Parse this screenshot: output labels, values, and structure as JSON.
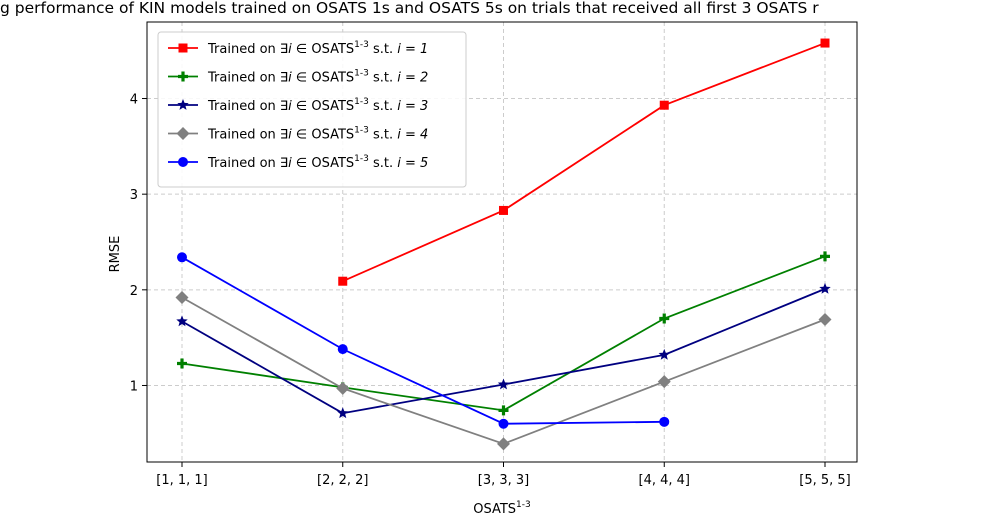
{
  "chart_data": {
    "type": "line",
    "title": "g performance of KIN models trained on OSATS 1s and OSATS 5s on trials that received all first 3 OSATS r",
    "xlabel": "OSATS",
    "xlabel_sup": "1-3",
    "ylabel": "RMSE",
    "categories": [
      "[1, 1, 1]",
      "[2, 2, 2]",
      "[3, 3, 3]",
      "[4, 4, 4]",
      "[5, 5, 5]"
    ],
    "ylim": [
      0.2,
      4.8
    ],
    "yticks": [
      1,
      2,
      3,
      4
    ],
    "grid": true,
    "legend_position": "top-left",
    "series": [
      {
        "name": "Trained on ∃i ∈ OSATS1-3 s.t. i = 1",
        "legend_prefix": "Trained on ∃",
        "legend_i": "i",
        "legend_mid": " ∈ OSATS",
        "legend_sup": "1-3",
        "legend_st": " s.t. ",
        "legend_val": "i = 1",
        "color": "#ff0000",
        "marker": "square",
        "values": [
          null,
          2.09,
          2.83,
          3.93,
          4.58
        ]
      },
      {
        "name": "Trained on ∃i ∈ OSATS1-3 s.t. i = 2",
        "legend_prefix": "Trained on ∃",
        "legend_i": "i",
        "legend_mid": " ∈ OSATS",
        "legend_sup": "1-3",
        "legend_st": " s.t. ",
        "legend_val": "i = 2",
        "color": "#008000",
        "marker": "plus",
        "values": [
          1.23,
          0.98,
          0.74,
          1.7,
          2.35
        ]
      },
      {
        "name": "Trained on ∃i ∈ OSATS1-3 s.t. i = 3",
        "legend_prefix": "Trained on ∃",
        "legend_i": "i",
        "legend_mid": " ∈ OSATS",
        "legend_sup": "1-3",
        "legend_st": " s.t. ",
        "legend_val": "i = 3",
        "color": "#000080",
        "marker": "star",
        "values": [
          1.67,
          0.71,
          1.01,
          1.32,
          2.01
        ]
      },
      {
        "name": "Trained on ∃i ∈ OSATS1-3 s.t. i = 4",
        "legend_prefix": "Trained on ∃",
        "legend_i": "i",
        "legend_mid": " ∈ OSATS",
        "legend_sup": "1-3",
        "legend_st": " s.t. ",
        "legend_val": "i = 4",
        "color": "#808080",
        "marker": "diamond",
        "values": [
          1.92,
          0.97,
          0.39,
          1.04,
          1.69
        ]
      },
      {
        "name": "Trained on ∃i ∈ OSATS1-3 s.t. i = 5",
        "legend_prefix": "Trained on ∃",
        "legend_i": "i",
        "legend_mid": " ∈ OSATS",
        "legend_sup": "1-3",
        "legend_st": " s.t. ",
        "legend_val": "i = 5",
        "color": "#0000ff",
        "marker": "circle",
        "values": [
          2.34,
          1.38,
          0.6,
          0.62,
          null
        ]
      }
    ]
  }
}
